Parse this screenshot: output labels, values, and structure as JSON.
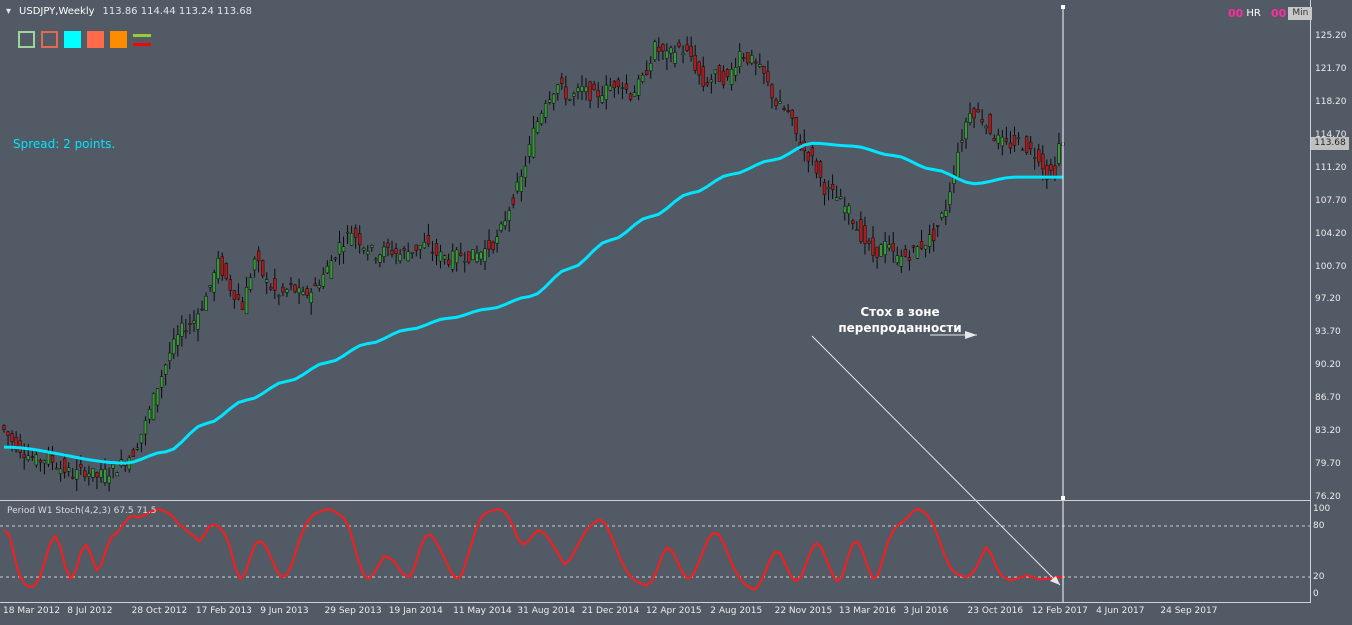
{
  "header": {
    "symbol": "USDJPY,Weekly",
    "ohlc": "113.86 114.44 113.24 113.68"
  },
  "spread_text": "Spread: 2 points.",
  "indicators": {
    "hr": {
      "value": "00",
      "label": "HR"
    },
    "min": {
      "value": "00",
      "label": "Min"
    }
  },
  "annotation": {
    "line1": "Стох в зоне",
    "line2": "перепроданности"
  },
  "current_price": "113.68",
  "stoch_label": "Period W1 Stoch(4,2,3) 67.5 71.5",
  "colors": {
    "background": "#525a66",
    "ma_line": "#00e5ff",
    "stoch_line": "#ff1a1a",
    "bull": "#3a9a3a",
    "bear": "#b21a1a"
  },
  "price_axis": [
    "125.20",
    "121.70",
    "118.20",
    "114.70",
    "111.20",
    "107.70",
    "104.20",
    "100.70",
    "97.20",
    "93.70",
    "90.20",
    "86.70",
    "83.20",
    "79.70",
    "76.20"
  ],
  "stoch_axis": [
    "100",
    "80",
    "20",
    "0"
  ],
  "time_axis": [
    "18 Mar 2012",
    "8 Jul 2012",
    "28 Oct 2012",
    "17 Feb 2013",
    "9 Jun 2013",
    "29 Sep 2013",
    "19 Jan 2014",
    "11 May 2014",
    "31 Aug 2014",
    "21 Dec 2014",
    "12 Apr 2015",
    "2 Aug 2015",
    "22 Nov 2015",
    "13 Mar 2016",
    "3 Jul 2016",
    "23 Oct 2016",
    "12 Feb 2017",
    "4 Jun 2017",
    "24 Sep 2017"
  ],
  "chart_data": {
    "type": "line",
    "title": "USDJPY,Weekly",
    "ylim": [
      76.2,
      126.8
    ],
    "price_path": [
      [
        0,
        83.8
      ],
      [
        3,
        82.2
      ],
      [
        6,
        81.0
      ],
      [
        9,
        80.0
      ],
      [
        12,
        80.4
      ],
      [
        15,
        79.3
      ],
      [
        18,
        78.6
      ],
      [
        21,
        79.0
      ],
      [
        24,
        78.4
      ],
      [
        27,
        78.9
      ],
      [
        30,
        79.7
      ],
      [
        33,
        81.0
      ],
      [
        36,
        84.0
      ],
      [
        39,
        88.0
      ],
      [
        42,
        91.5
      ],
      [
        45,
        94.0
      ],
      [
        48,
        95.0
      ],
      [
        51,
        97.5
      ],
      [
        54,
        101.0
      ],
      [
        57,
        98.5
      ],
      [
        60,
        96.5
      ],
      [
        63,
        101.5
      ],
      [
        66,
        99.0
      ],
      [
        69,
        97.5
      ],
      [
        72,
        98.5
      ],
      [
        75,
        97.5
      ],
      [
        78,
        98.5
      ],
      [
        81,
        100.5
      ],
      [
        84,
        103.0
      ],
      [
        87,
        104.5
      ],
      [
        90,
        103.0
      ],
      [
        93,
        102.0
      ],
      [
        96,
        102.5
      ],
      [
        99,
        102.0
      ],
      [
        102,
        102.5
      ],
      [
        105,
        103.0
      ],
      [
        108,
        102.0
      ],
      [
        111,
        101.5
      ],
      [
        114,
        102.0
      ],
      [
        117,
        101.8
      ],
      [
        120,
        102.5
      ],
      [
        123,
        103.5
      ],
      [
        126,
        107.0
      ],
      [
        129,
        110.0
      ],
      [
        132,
        115.0
      ],
      [
        135,
        118.5
      ],
      [
        138,
        120.0
      ],
      [
        141,
        118.5
      ],
      [
        144,
        119.5
      ],
      [
        147,
        118.8
      ],
      [
        150,
        119.5
      ],
      [
        153,
        120.5
      ],
      [
        156,
        119.0
      ],
      [
        159,
        120.5
      ],
      [
        162,
        124.0
      ],
      [
        165,
        123.0
      ],
      [
        168,
        124.0
      ],
      [
        171,
        123.0
      ],
      [
        174,
        120.0
      ],
      [
        177,
        121.0
      ],
      [
        180,
        120.5
      ],
      [
        183,
        123.5
      ],
      [
        186,
        122.5
      ],
      [
        189,
        121.0
      ],
      [
        192,
        118.0
      ],
      [
        195,
        117.0
      ],
      [
        198,
        113.5
      ],
      [
        201,
        112.0
      ],
      [
        204,
        109.0
      ],
      [
        207,
        108.0
      ],
      [
        210,
        106.5
      ],
      [
        213,
        104.0
      ],
      [
        216,
        102.0
      ],
      [
        219,
        103.0
      ],
      [
        222,
        101.5
      ],
      [
        225,
        102.0
      ],
      [
        228,
        103.0
      ],
      [
        231,
        104.0
      ],
      [
        234,
        107.0
      ],
      [
        237,
        113.0
      ],
      [
        240,
        117.5
      ],
      [
        243,
        116.5
      ],
      [
        246,
        114.5
      ],
      [
        249,
        113.5
      ],
      [
        252,
        114.0
      ],
      [
        255,
        113.0
      ],
      [
        257,
        112.5
      ],
      [
        259,
        110.5
      ],
      [
        261,
        111.0
      ],
      [
        262,
        113.68
      ]
    ],
    "ma_path": [
      [
        0,
        81.5
      ],
      [
        30,
        79.8
      ],
      [
        40,
        81.0
      ],
      [
        50,
        84.0
      ],
      [
        60,
        86.5
      ],
      [
        70,
        88.5
      ],
      [
        80,
        90.5
      ],
      [
        90,
        92.5
      ],
      [
        100,
        94.0
      ],
      [
        110,
        95.2
      ],
      [
        120,
        96.2
      ],
      [
        130,
        97.5
      ],
      [
        140,
        100.5
      ],
      [
        150,
        103.5
      ],
      [
        160,
        106.0
      ],
      [
        170,
        108.5
      ],
      [
        180,
        110.5
      ],
      [
        190,
        112.0
      ],
      [
        200,
        113.8
      ],
      [
        210,
        113.5
      ],
      [
        220,
        112.5
      ],
      [
        230,
        111.0
      ],
      [
        240,
        109.5
      ],
      [
        250,
        110.2
      ],
      [
        262,
        110.2
      ]
    ],
    "stoch": [
      75,
      70,
      45,
      22,
      12,
      8,
      10,
      20,
      40,
      60,
      68,
      55,
      30,
      18,
      28,
      50,
      58,
      45,
      28,
      35,
      55,
      68,
      72,
      80,
      88,
      92,
      90,
      92,
      95,
      98,
      100,
      98,
      95,
      90,
      82,
      78,
      72,
      68,
      62,
      70,
      80,
      82,
      78,
      70,
      55,
      30,
      18,
      25,
      45,
      60,
      62,
      55,
      42,
      28,
      20,
      22,
      35,
      55,
      72,
      85,
      92,
      96,
      98,
      100,
      98,
      94,
      90,
      80,
      60,
      38,
      22,
      18,
      25,
      35,
      45,
      42,
      38,
      28,
      22,
      20,
      35,
      55,
      68,
      70,
      62,
      50,
      38,
      25,
      18,
      22,
      40,
      60,
      80,
      92,
      96,
      98,
      100,
      98,
      92,
      80,
      65,
      58,
      62,
      70,
      75,
      72,
      65,
      55,
      45,
      35,
      40,
      50,
      62,
      72,
      80,
      85,
      88,
      82,
      70,
      55,
      40,
      28,
      20,
      15,
      12,
      10,
      15,
      28,
      45,
      55,
      50,
      38,
      25,
      18,
      22,
      35,
      50,
      65,
      72,
      70,
      60,
      45,
      30,
      20,
      12,
      8,
      5,
      12,
      25,
      40,
      50,
      48,
      35,
      22,
      15,
      20,
      35,
      52,
      60,
      55,
      40,
      25,
      15,
      20,
      40,
      58,
      62,
      50,
      32,
      18,
      22,
      42,
      62,
      75,
      82,
      85,
      92,
      98,
      100,
      96,
      90,
      78,
      62,
      45,
      32,
      25,
      22,
      20,
      22,
      30,
      42,
      55,
      48,
      32,
      22,
      18,
      16,
      18,
      20,
      22,
      20,
      18,
      17,
      18,
      19,
      20,
      20
    ]
  }
}
